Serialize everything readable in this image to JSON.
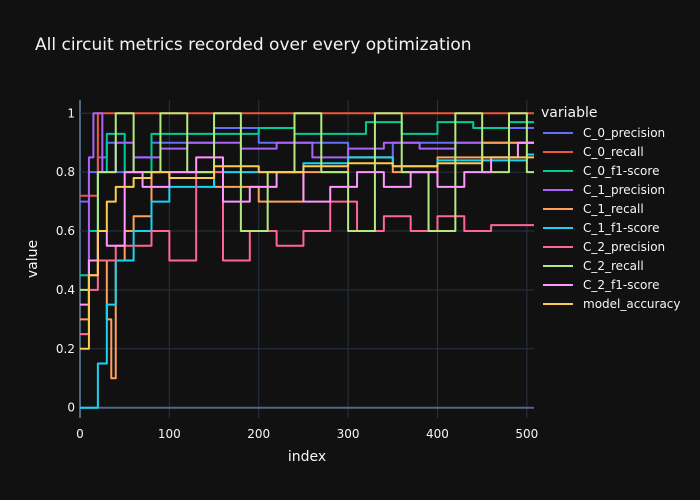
{
  "chart_data": {
    "type": "line",
    "title": "All circuit metrics recorded over every optimization",
    "xlabel": "index",
    "ylabel": "value",
    "xlim": [
      0,
      508
    ],
    "ylim": [
      -0.035,
      1.045
    ],
    "xticks": [
      0,
      100,
      200,
      300,
      400,
      500
    ],
    "yticks": [
      0,
      0.2,
      0.4,
      0.6,
      0.8,
      1
    ],
    "ytick_labels": [
      "0",
      "0.2",
      "0.4",
      "0.6",
      "0.8",
      "1"
    ],
    "legend_title": "variable",
    "legend_position": "right",
    "series": [
      {
        "name": "C_0_precision",
        "color": "#636efa",
        "x": [
          0,
          10,
          20,
          30,
          40,
          60,
          80,
          100,
          150,
          200,
          250,
          300,
          350,
          400,
          450,
          480,
          508
        ],
        "values": [
          0.7,
          0.8,
          0.85,
          0.9,
          0.8,
          0.85,
          0.9,
          0.9,
          0.95,
          0.9,
          0.9,
          0.85,
          0.9,
          0.9,
          0.9,
          0.95,
          0.95
        ]
      },
      {
        "name": "C_0_recall",
        "color": "#EF553B",
        "x": [
          0,
          5,
          20,
          508
        ],
        "values": [
          0.72,
          0.72,
          1,
          1
        ]
      },
      {
        "name": "C_0_f1-score",
        "color": "#00cc96",
        "x": [
          0,
          10,
          20,
          30,
          50,
          80,
          120,
          160,
          200,
          240,
          280,
          320,
          360,
          400,
          440,
          480,
          508
        ],
        "values": [
          0.45,
          0.6,
          0.8,
          0.93,
          0.8,
          0.93,
          0.93,
          0.93,
          0.95,
          0.93,
          0.93,
          0.97,
          0.93,
          0.97,
          0.95,
          0.97,
          0.97
        ]
      },
      {
        "name": "C_1_precision",
        "color": "#ab63fa",
        "x": [
          0,
          10,
          15,
          25,
          40,
          60,
          90,
          120,
          180,
          220,
          260,
          300,
          340,
          380,
          420,
          460,
          500,
          508
        ],
        "values": [
          0.25,
          0.85,
          1,
          0.8,
          0.9,
          0.85,
          0.88,
          0.9,
          0.88,
          0.9,
          0.85,
          0.88,
          0.9,
          0.88,
          0.9,
          0.9,
          0.9,
          0.9
        ]
      },
      {
        "name": "C_1_recall",
        "color": "#FFA15A",
        "x": [
          0,
          10,
          20,
          30,
          35,
          40,
          50,
          60,
          80,
          100,
          150,
          200,
          250,
          300,
          350,
          400,
          450,
          508
        ],
        "values": [
          0.3,
          0.45,
          0.5,
          0.3,
          0.1,
          0.5,
          0.6,
          0.65,
          0.8,
          0.8,
          0.75,
          0.7,
          0.8,
          0.85,
          0.8,
          0.85,
          0.9,
          0.9
        ]
      },
      {
        "name": "C_1_f1-score",
        "color": "#19d3f3",
        "x": [
          0,
          8,
          15,
          20,
          30,
          40,
          60,
          80,
          100,
          150,
          200,
          250,
          300,
          350,
          400,
          450,
          500,
          508
        ],
        "values": [
          0,
          0,
          0,
          0.15,
          0.35,
          0.5,
          0.6,
          0.7,
          0.75,
          0.8,
          0.8,
          0.83,
          0.85,
          0.82,
          0.84,
          0.84,
          0.86,
          0.86
        ]
      },
      {
        "name": "C_2_precision",
        "color": "#FF6692",
        "x": [
          0,
          10,
          20,
          40,
          60,
          80,
          100,
          130,
          160,
          190,
          220,
          250,
          280,
          310,
          340,
          370,
          400,
          430,
          460,
          490,
          508
        ],
        "values": [
          0.25,
          0.4,
          0.5,
          0.55,
          0.55,
          0.6,
          0.5,
          0.8,
          0.5,
          0.6,
          0.55,
          0.6,
          0.7,
          0.6,
          0.65,
          0.6,
          0.65,
          0.6,
          0.62,
          0.62,
          0.62
        ]
      },
      {
        "name": "C_2_recall",
        "color": "#B6E880",
        "x": [
          0,
          10,
          20,
          40,
          60,
          90,
          120,
          150,
          180,
          210,
          240,
          270,
          300,
          330,
          360,
          390,
          420,
          450,
          480,
          500,
          508
        ],
        "values": [
          0.4,
          0.5,
          0.8,
          1,
          0.8,
          1,
          0.8,
          1,
          0.6,
          0.8,
          1,
          0.8,
          0.6,
          1,
          0.8,
          0.6,
          1,
          0.8,
          1,
          0.8,
          0.8
        ]
      },
      {
        "name": "C_2_f1-score",
        "color": "#FF97FF",
        "x": [
          0,
          10,
          20,
          30,
          50,
          70,
          100,
          130,
          160,
          190,
          220,
          250,
          280,
          310,
          340,
          370,
          400,
          430,
          460,
          490,
          508
        ],
        "values": [
          0.35,
          0.5,
          0.6,
          0.55,
          0.8,
          0.75,
          0.8,
          0.85,
          0.7,
          0.75,
          0.8,
          0.7,
          0.75,
          0.8,
          0.75,
          0.8,
          0.75,
          0.8,
          0.85,
          0.9,
          0.9
        ]
      },
      {
        "name": "model_accuracy",
        "color": "#FECB52",
        "x": [
          0,
          10,
          20,
          30,
          40,
          60,
          80,
          100,
          150,
          200,
          250,
          300,
          350,
          400,
          450,
          500,
          508
        ],
        "values": [
          0.2,
          0.45,
          0.6,
          0.7,
          0.75,
          0.78,
          0.8,
          0.78,
          0.82,
          0.8,
          0.82,
          0.83,
          0.82,
          0.83,
          0.85,
          0.85,
          0.85
        ]
      }
    ]
  }
}
